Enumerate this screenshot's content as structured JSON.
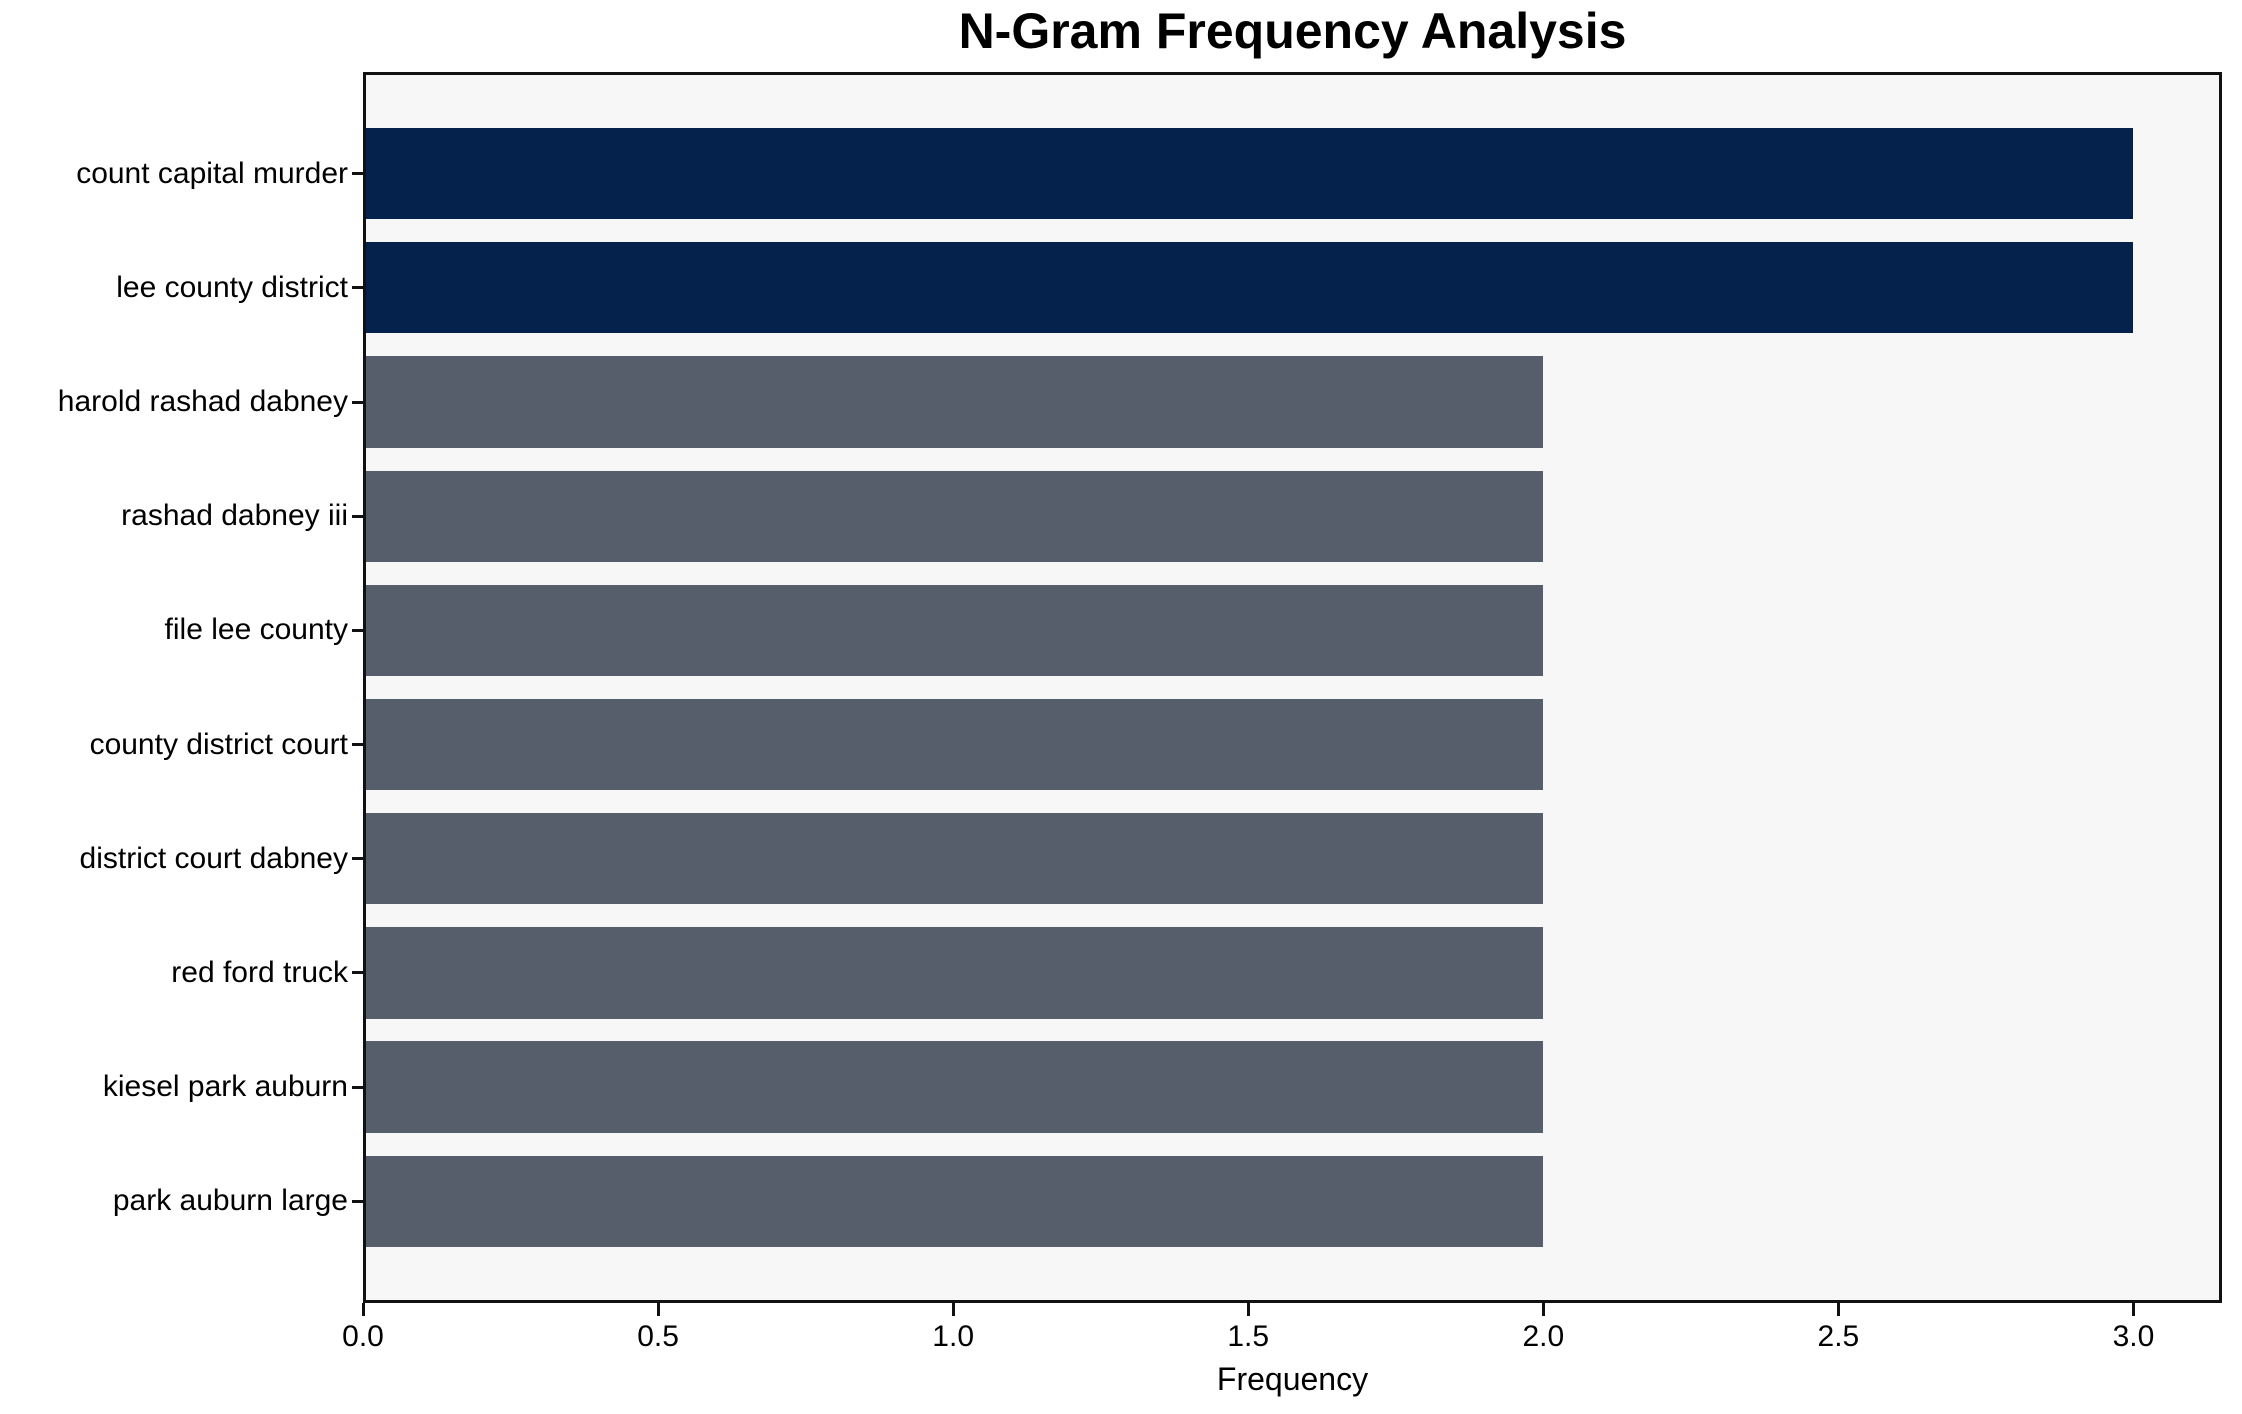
{
  "chart_data": {
    "type": "bar",
    "orientation": "horizontal",
    "title": "N-Gram Frequency Analysis",
    "xlabel": "Frequency",
    "ylabel": "",
    "categories": [
      "count capital murder",
      "lee county district",
      "harold rashad dabney",
      "rashad dabney iii",
      "file lee county",
      "county district court",
      "district court dabney",
      "red ford truck",
      "kiesel park auburn",
      "park auburn large"
    ],
    "values": [
      3,
      3,
      2,
      2,
      2,
      2,
      2,
      2,
      2,
      2
    ],
    "bar_colors": [
      "#04224c",
      "#04224c",
      "#565d6b",
      "#565d6b",
      "#565d6b",
      "#565d6b",
      "#565d6b",
      "#565d6b",
      "#565d6b",
      "#565d6b"
    ],
    "xticks": [
      0.0,
      0.5,
      1.0,
      1.5,
      2.0,
      2.5,
      3.0
    ],
    "xtick_labels": [
      "0.0",
      "0.5",
      "1.0",
      "1.5",
      "2.0",
      "2.5",
      "3.0"
    ],
    "xlim": [
      0,
      3.15
    ],
    "ylim": [
      -0.89,
      9.89
    ],
    "bar_thickness": 0.8,
    "grid": false,
    "legend_position": "none",
    "colors": {
      "highlight": "#04224c",
      "default_bar": "#565d6b",
      "plot_background": "#f7f7f8",
      "figure_background": "#ffffff",
      "axis": "#111111",
      "text": "#000000"
    }
  }
}
